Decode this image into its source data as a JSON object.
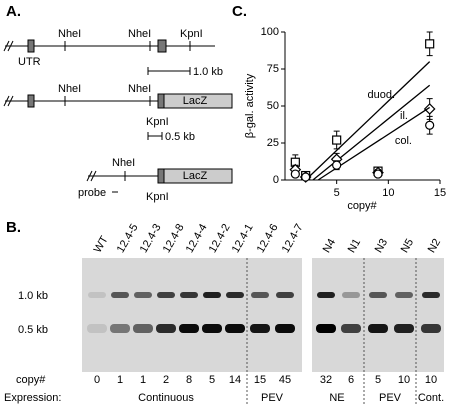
{
  "panel_a": {
    "label": "A.",
    "maps": [
      {
        "sites": [
          "NheI",
          "NheI",
          "KpnI"
        ],
        "utr": "UTR",
        "scale": "1.0 kb"
      },
      {
        "sites": [
          "NheI",
          "NheI"
        ],
        "box": "LacZ",
        "kpn": "KpnI",
        "scale": "0.5 kb"
      },
      {
        "sites": [
          "NheI"
        ],
        "box": "LacZ",
        "probe": "probe",
        "kpn": "KpnI"
      }
    ]
  },
  "panel_b": {
    "label": "B.",
    "lanes": [
      "WT",
      "12.4-5",
      "12.4-3",
      "12.4-8",
      "12.4-4",
      "12.4-2",
      "12.4-1",
      "12.4-6",
      "12.4-7",
      "N4",
      "N1",
      "N3",
      "N5",
      "N2"
    ],
    "rows": [
      "1.0 kb",
      "0.5 kb"
    ],
    "copy_label": "copy#",
    "copy": [
      0,
      1,
      1,
      2,
      8,
      5,
      14,
      15,
      45,
      32,
      6,
      5,
      10,
      10
    ],
    "expression_label": "Expression:",
    "expression": [
      "Continuous",
      "PEV",
      "NE",
      "PEV",
      "Cont."
    ]
  },
  "chart_data": {
    "type": "scatter",
    "label": "C.",
    "y_label": "β-gal. activity",
    "x_label": "copy#",
    "x": [
      1,
      2,
      5,
      9,
      14
    ],
    "xlim": [
      0,
      15
    ],
    "xticks": [
      5,
      10,
      15
    ],
    "ylim": [
      0,
      100
    ],
    "yticks": [
      0,
      25,
      50,
      75,
      100
    ],
    "series": [
      {
        "name": "duod.",
        "marker": "square",
        "values": [
          12,
          3,
          27,
          6,
          92
        ],
        "errors": [
          5,
          1,
          6,
          2,
          8
        ],
        "fit": {
          "x": [
            2,
            14
          ],
          "values": [
            0,
            80
          ]
        }
      },
      {
        "name": "il.",
        "marker": "diamond",
        "values": [
          7,
          2,
          14,
          5,
          48
        ],
        "errors": [
          3,
          1,
          4,
          2,
          7
        ],
        "fit": {
          "x": [
            2.7,
            14
          ],
          "values": [
            0,
            64
          ]
        }
      },
      {
        "name": "col.",
        "marker": "circle",
        "values": [
          4,
          2,
          10,
          4,
          37
        ],
        "errors": [
          2,
          1,
          3,
          2,
          6
        ],
        "fit": {
          "x": [
            3.2,
            14
          ],
          "values": [
            0,
            49
          ]
        }
      }
    ]
  }
}
